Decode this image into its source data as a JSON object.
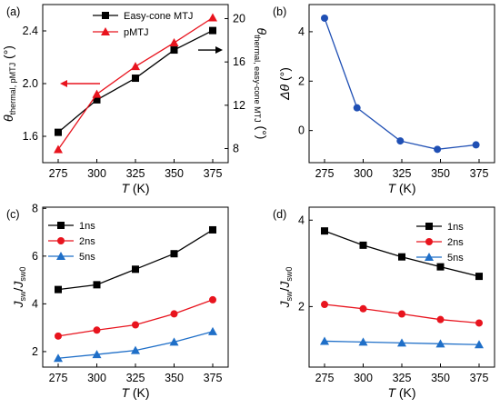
{
  "chart_data": [
    {
      "panel": "(a)",
      "type": "line",
      "x": [
        275,
        300,
        325,
        350,
        375
      ],
      "xlabel": "T (K)",
      "xlim": [
        265,
        385
      ],
      "left_axis": {
        "label": "θthermal, pMTJ (°)",
        "label_main": "θ",
        "label_sub": "thermal, pMTJ",
        "label_unit": " (°)",
        "ylim": [
          1.4,
          2.6
        ],
        "ticks": [
          1.6,
          2.0,
          2.4
        ],
        "tick_labels": [
          "1.6",
          "2.0",
          "2.4"
        ]
      },
      "right_axis": {
        "label": "θthermal, easy-cone MTJ (°)",
        "label_main": "θ",
        "label_sub": "thermal, easy-cone MTJ",
        "label_unit": " (°)",
        "ylim": [
          6.7,
          21.3
        ],
        "ticks": [
          8,
          12,
          16,
          20
        ],
        "tick_labels": [
          "8",
          "12",
          "16",
          "20"
        ]
      },
      "series": [
        {
          "name": "Easy-cone MTJ",
          "axis": "right",
          "marker": "square",
          "color": "#000000",
          "values": [
            9.5,
            12.5,
            14.5,
            17.1,
            18.9
          ]
        },
        {
          "name": "pMTJ",
          "axis": "left",
          "marker": "triangle",
          "color": "#e8141e",
          "values": [
            1.5,
            1.92,
            2.13,
            2.31,
            2.5
          ]
        }
      ],
      "legend_position": "top-left",
      "annotations": [
        "arrow-left",
        "arrow-right"
      ]
    },
    {
      "panel": "(b)",
      "type": "line",
      "x": [
        275,
        296,
        324,
        348,
        373
      ],
      "xlabel": "T (K)",
      "xlim": [
        265,
        385
      ],
      "ylabel": "Δθ (°)",
      "ylabel_main": "Δθ",
      "ylabel_unit": " (°)",
      "ylim": [
        -1.3,
        5.1
      ],
      "yticks": [
        0,
        2,
        4
      ],
      "ytick_labels": [
        "0",
        "2",
        "4"
      ],
      "series": [
        {
          "name": "",
          "marker": "circle",
          "color": "#1f4fb4",
          "values": [
            4.55,
            0.92,
            -0.42,
            -0.76,
            -0.58
          ]
        }
      ]
    },
    {
      "panel": "(c)",
      "type": "line",
      "x": [
        275,
        300,
        325,
        350,
        375
      ],
      "xlabel": "T (K)",
      "xlim": [
        265,
        385
      ],
      "ylabel": "Jsw/Jsw0",
      "ylim": [
        1.35,
        8.05
      ],
      "yticks": [
        2,
        4,
        6,
        8
      ],
      "ytick_labels": [
        "2",
        "4",
        "6",
        "8"
      ],
      "series": [
        {
          "name": "1ns",
          "marker": "square",
          "color": "#000000",
          "values": [
            4.6,
            4.8,
            5.45,
            6.1,
            7.1
          ]
        },
        {
          "name": "2ns",
          "marker": "circle",
          "color": "#e8141e",
          "values": [
            2.65,
            2.9,
            3.12,
            3.58,
            4.17
          ]
        },
        {
          "name": "5ns",
          "marker": "triangle",
          "color": "#1f6fc8",
          "values": [
            1.72,
            1.88,
            2.05,
            2.4,
            2.84
          ]
        }
      ],
      "legend_position": "top-left"
    },
    {
      "panel": "(d)",
      "type": "line",
      "x": [
        275,
        300,
        325,
        350,
        375
      ],
      "xlabel": "T (K)",
      "xlim": [
        265,
        385
      ],
      "ylabel": "Jsw/Jsw0",
      "ylim": [
        0.6,
        4.3
      ],
      "yticks": [
        2,
        4
      ],
      "ytick_labels": [
        "2",
        "4"
      ],
      "series": [
        {
          "name": "1ns",
          "marker": "square",
          "color": "#000000",
          "values": [
            3.75,
            3.42,
            3.15,
            2.92,
            2.7
          ]
        },
        {
          "name": "2ns",
          "marker": "circle",
          "color": "#e8141e",
          "values": [
            2.05,
            1.95,
            1.83,
            1.7,
            1.62
          ]
        },
        {
          "name": "5ns",
          "marker": "triangle",
          "color": "#1f6fc8",
          "values": [
            1.2,
            1.18,
            1.16,
            1.14,
            1.12
          ]
        }
      ],
      "legend_position": "top-right"
    }
  ]
}
